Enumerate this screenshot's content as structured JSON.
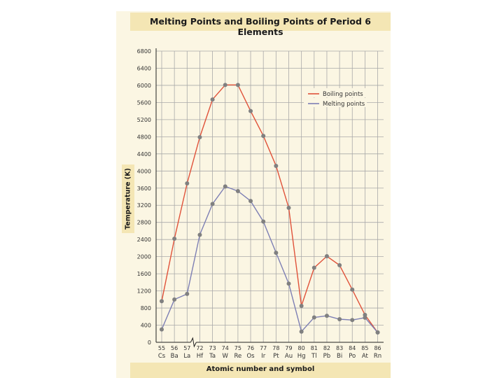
{
  "chart_data": {
    "type": "line",
    "title": "Melting Points and Boiling Points of Period 6 Elements",
    "xlabel": "Atomic number and symbol",
    "ylabel": "Temperature (K)",
    "ylim": [
      0,
      6800
    ],
    "yticks": [
      0,
      400,
      800,
      1200,
      1600,
      2000,
      2400,
      2800,
      3200,
      3600,
      4000,
      4400,
      4800,
      5200,
      5600,
      6000,
      6400,
      6800
    ],
    "grid": true,
    "legend_position": "top-right",
    "x_break_after": "57",
    "categories": [
      {
        "number": "55",
        "symbol": "Cs"
      },
      {
        "number": "56",
        "symbol": "Ba"
      },
      {
        "number": "57",
        "symbol": "La"
      },
      {
        "number": "72",
        "symbol": "Hf"
      },
      {
        "number": "73",
        "symbol": "Ta"
      },
      {
        "number": "74",
        "symbol": "W"
      },
      {
        "number": "75",
        "symbol": "Re"
      },
      {
        "number": "76",
        "symbol": "Os"
      },
      {
        "number": "77",
        "symbol": "Ir"
      },
      {
        "number": "78",
        "symbol": "Pt"
      },
      {
        "number": "79",
        "symbol": "Au"
      },
      {
        "number": "80",
        "symbol": "Hg"
      },
      {
        "number": "81",
        "symbol": "Tl"
      },
      {
        "number": "82",
        "symbol": "Pb"
      },
      {
        "number": "83",
        "symbol": "Bi"
      },
      {
        "number": "84",
        "symbol": "Po"
      },
      {
        "number": "85",
        "symbol": "At"
      },
      {
        "number": "86",
        "symbol": "Rn"
      }
    ],
    "series": [
      {
        "name": "Boiling points",
        "color": "#e0523a",
        "values": [
          960,
          2420,
          3710,
          4790,
          5670,
          6010,
          6010,
          5400,
          4820,
          4120,
          3140,
          850,
          1740,
          2010,
          1800,
          1230,
          640,
          230
        ]
      },
      {
        "name": "Melting points",
        "color": "#7d7fb4",
        "values": [
          300,
          1000,
          1130,
          2510,
          3230,
          3640,
          3530,
          3300,
          2820,
          2090,
          1370,
          250,
          580,
          620,
          540,
          520,
          575,
          230
        ]
      }
    ]
  }
}
